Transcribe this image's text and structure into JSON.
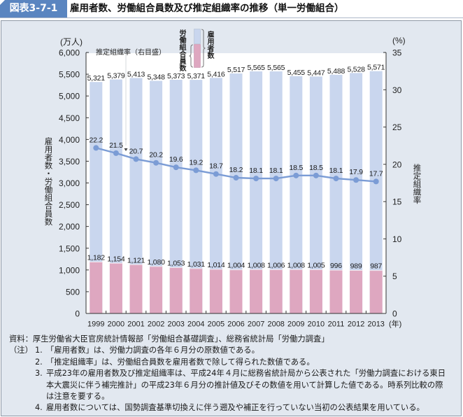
{
  "header": {
    "label": "図表3-7-1"
  },
  "chart_data": {
    "type": "bar",
    "title": "雇用者数、労働組合員数及び推定組織率の推移（単一労働組合）",
    "categories": [
      "1999",
      "2000",
      "2001",
      "2002",
      "2003",
      "2004",
      "2005",
      "2006",
      "2007",
      "2008",
      "2009",
      "2010",
      "2011",
      "2012",
      "2013"
    ],
    "x_unit": "(年)",
    "y_left": {
      "label": "雇用者数・労働組合員数",
      "unit": "(万人)",
      "range": [
        0,
        6000
      ],
      "ticks": [
        0,
        500,
        1000,
        1500,
        2000,
        2500,
        3000,
        3500,
        4000,
        4500,
        5000,
        5500,
        6000
      ],
      "tick_labels": [
        "0",
        "500",
        "1,000",
        "1,500",
        "2,000",
        "2,500",
        "3,000",
        "3,500",
        "4,000",
        "4,500",
        "5,000",
        "5,500",
        "6,000"
      ]
    },
    "y_right": {
      "label": "推定組織率",
      "unit": "(%)",
      "range": [
        0,
        35
      ],
      "ticks": [
        0,
        5,
        10,
        15,
        20,
        25,
        30,
        35
      ],
      "tick_labels": [
        "0",
        "5",
        "10",
        "15",
        "20",
        "25",
        "30",
        "35"
      ]
    },
    "series": [
      {
        "name": "雇用者数",
        "type": "bar",
        "axis": "left",
        "color": "#c9d6ee",
        "values": [
          5321,
          5379,
          5413,
          5348,
          5373,
          5371,
          5416,
          5517,
          5565,
          5565,
          5455,
          5447,
          5488,
          5528,
          5571
        ],
        "labels": [
          "5,321",
          "5,379",
          "5,413",
          "5,348",
          "5,373",
          "5,371",
          "5,416",
          "5,517",
          "5,565",
          "5,565",
          "5,455",
          "5,447",
          "5,488",
          "5,528",
          "5,571"
        ]
      },
      {
        "name": "労働組合員数",
        "type": "bar",
        "axis": "left",
        "color": "#dea7c0",
        "values": [
          1182,
          1154,
          1121,
          1080,
          1053,
          1031,
          1014,
          1004,
          1008,
          1006,
          1008,
          1005,
          996,
          989,
          987
        ],
        "labels": [
          "1,182",
          "1,154",
          "1,121",
          "1,080",
          "1,053",
          "1,031",
          "1,014",
          "1,004",
          "1,008",
          "1,006",
          "1,008",
          "1,005",
          "996",
          "989",
          "987"
        ]
      },
      {
        "name": "推定組織率（右目盛）",
        "type": "line",
        "axis": "right",
        "color": "#7b9cd5",
        "values": [
          22.2,
          21.5,
          20.7,
          20.2,
          19.6,
          19.2,
          18.7,
          18.2,
          18.1,
          18.1,
          18.5,
          18.5,
          18.1,
          17.9,
          17.7
        ],
        "labels": [
          "22.2",
          "21.5",
          "20.7",
          "20.2",
          "19.6",
          "19.2",
          "18.7",
          "18.2",
          "18.1",
          "18.1",
          "18.5",
          "18.5",
          "18.1",
          "17.9",
          "17.7"
        ]
      }
    ],
    "legend_position": "top-center",
    "grid": false
  },
  "footer": {
    "source": "資料：厚生労働省大臣官房統計情報部「労働組合基礎調査」、総務省統計局「労働力調査」",
    "notes_label": "（注）",
    "notes": [
      {
        "num": "1.",
        "lines": [
          "「雇用者数」は、労働力調査の各年６月分の原数値である。"
        ]
      },
      {
        "num": "2.",
        "lines": [
          "「推定組織率」は、労働組合員数を雇用者数で除して得られた数値である。"
        ]
      },
      {
        "num": "3.",
        "lines": [
          "平成23年の雇用者数及び推定組織率は、平成24年４月に総務省統計局から公表された「労働力調査における東日",
          "本大震災に伴う補完推計」の平成23年６月分の推計値及びその数値を用いて計算した値である。時系列比較の際",
          "は注意を要する。"
        ]
      },
      {
        "num": "4.",
        "lines": [
          "雇用者数については、国勢調査基準切換えに伴う遡及や補正を行っていない当初の公表結果を用いている。"
        ]
      }
    ]
  }
}
